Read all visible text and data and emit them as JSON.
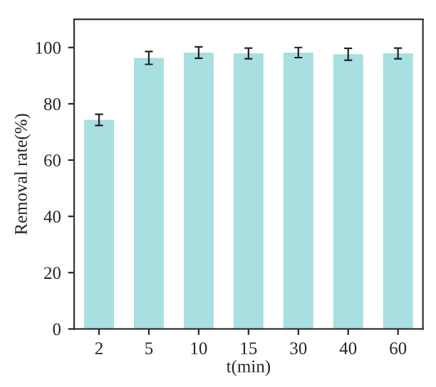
{
  "chart_data": {
    "type": "bar",
    "xlabel": "t(min)",
    "ylabel": "Removal rate(%)",
    "categories": [
      "2",
      "5",
      "10",
      "15",
      "30",
      "40",
      "60"
    ],
    "values": [
      74.3,
      96.3,
      98.2,
      97.9,
      98.2,
      97.6,
      97.9
    ],
    "errors": [
      2,
      2.3,
      2,
      1.9,
      1.8,
      2.1,
      1.9
    ],
    "color": "#a8dfe0",
    "ylim": [
      0,
      110
    ],
    "yticks": [
      0,
      20,
      40,
      60,
      80,
      100
    ],
    "grid": false,
    "legend": false
  }
}
